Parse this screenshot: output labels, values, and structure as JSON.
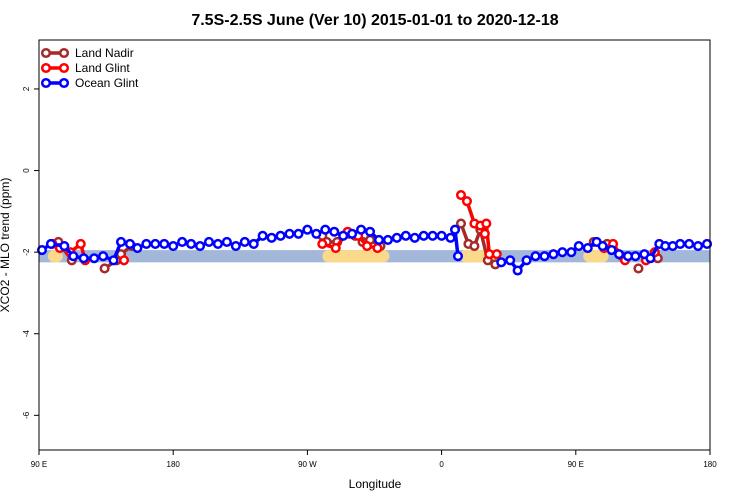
{
  "chart_data": {
    "type": "line",
    "title": "7.5S-2.5S June (Ver 10)   2015-01-01 to 2020-12-18",
    "xlabel": "Longitude",
    "ylabel": "XCO2 - MLO trend (ppm)",
    "x_tick_labels": [
      "90 E",
      "180",
      "90 W",
      "0",
      "90 E",
      "180"
    ],
    "y_ticks": [
      2,
      0,
      -2,
      -4,
      -6
    ],
    "y_tick_labels": [
      "2",
      "0",
      "-2",
      "-4",
      "-6"
    ],
    "x_range": [
      0,
      450
    ],
    "ylim": [
      -6.85,
      3.2
    ],
    "grid": false,
    "legend_position": "top-left",
    "background_bands": [
      {
        "color": "#a3b8d8",
        "y": [
          -2.25,
          -1.95
        ],
        "x": [
          0,
          450
        ]
      },
      {
        "color": "#fbd98a",
        "y": [
          -2.25,
          -1.95
        ],
        "x": [
          6,
          16
        ]
      },
      {
        "color": "#fbd98a",
        "y": [
          -2.25,
          -1.95
        ],
        "x": [
          190,
          235
        ]
      },
      {
        "color": "#fbd98a",
        "y": [
          -2.25,
          -1.95
        ],
        "x": [
          282,
          310
        ]
      },
      {
        "color": "#fbd98a",
        "y": [
          -2.25,
          -1.95
        ],
        "x": [
          365,
          382
        ]
      }
    ],
    "series": [
      {
        "name": "Land Nadir",
        "color": "#a52a2a",
        "points": [
          [
            13,
            -1.75
          ],
          [
            22,
            -2.2
          ],
          [
            44,
            -2.4
          ],
          [
            52,
            -2.2
          ],
          [
            55,
            -2.05
          ],
          [
            62,
            -1.85
          ],
          [
            190,
            -1.6
          ],
          [
            193,
            -1.75
          ],
          [
            200,
            -1.75
          ],
          [
            208,
            -1.55
          ],
          [
            212,
            -1.6
          ],
          [
            217,
            -1.75
          ],
          [
            222,
            -1.7
          ],
          [
            229,
            -1.85
          ],
          [
            283,
            -1.3
          ],
          [
            288,
            -1.8
          ],
          [
            292,
            -1.85
          ],
          [
            296,
            -1.45
          ],
          [
            301,
            -2.2
          ],
          [
            306,
            -2.3
          ],
          [
            372,
            -1.75
          ],
          [
            381,
            -1.8
          ],
          [
            391,
            -2.1
          ],
          [
            402,
            -2.4
          ],
          [
            415,
            -2.15
          ]
        ]
      },
      {
        "name": "Land Glint",
        "color": "#ff0000",
        "points": [
          [
            9,
            -1.8
          ],
          [
            14,
            -1.9
          ],
          [
            21,
            -2.0
          ],
          [
            28,
            -1.8
          ],
          [
            31,
            -2.2
          ],
          [
            57,
            -2.2
          ],
          [
            190,
            -1.8
          ],
          [
            199,
            -1.9
          ],
          [
            207,
            -1.5
          ],
          [
            214,
            -1.6
          ],
          [
            220,
            -1.85
          ],
          [
            227,
            -1.9
          ],
          [
            283,
            -0.6
          ],
          [
            287,
            -0.75
          ],
          [
            292,
            -1.3
          ],
          [
            296,
            -1.35
          ],
          [
            299,
            -1.55
          ],
          [
            300,
            -1.3
          ],
          [
            302,
            -2.05
          ],
          [
            307,
            -2.05
          ],
          [
            379,
            -1.9
          ],
          [
            385,
            -1.8
          ],
          [
            393,
            -2.2
          ],
          [
            407,
            -2.2
          ],
          [
            413,
            -2.0
          ]
        ]
      },
      {
        "name": "Ocean Glint",
        "color": "#0000ff",
        "points": [
          [
            2,
            -1.95
          ],
          [
            8,
            -1.8
          ],
          [
            17,
            -1.85
          ],
          [
            23,
            -2.1
          ],
          [
            30,
            -2.15
          ],
          [
            37,
            -2.15
          ],
          [
            43,
            -2.1
          ],
          [
            50,
            -2.2
          ],
          [
            55,
            -1.75
          ],
          [
            61,
            -1.8
          ],
          [
            66,
            -1.9
          ],
          [
            72,
            -1.8
          ],
          [
            78,
            -1.8
          ],
          [
            84,
            -1.8
          ],
          [
            90,
            -1.85
          ],
          [
            96,
            -1.75
          ],
          [
            102,
            -1.8
          ],
          [
            108,
            -1.85
          ],
          [
            114,
            -1.75
          ],
          [
            120,
            -1.8
          ],
          [
            126,
            -1.75
          ],
          [
            132,
            -1.85
          ],
          [
            138,
            -1.75
          ],
          [
            144,
            -1.8
          ],
          [
            150,
            -1.6
          ],
          [
            156,
            -1.65
          ],
          [
            162,
            -1.6
          ],
          [
            168,
            -1.55
          ],
          [
            174,
            -1.55
          ],
          [
            180,
            -1.45
          ],
          [
            186,
            -1.55
          ],
          [
            192,
            -1.45
          ],
          [
            198,
            -1.5
          ],
          [
            204,
            -1.6
          ],
          [
            210,
            -1.55
          ],
          [
            216,
            -1.45
          ],
          [
            222,
            -1.5
          ],
          [
            228,
            -1.7
          ],
          [
            234,
            -1.7
          ],
          [
            240,
            -1.65
          ],
          [
            246,
            -1.6
          ],
          [
            252,
            -1.65
          ],
          [
            258,
            -1.6
          ],
          [
            264,
            -1.6
          ],
          [
            270,
            -1.6
          ],
          [
            276,
            -1.65
          ],
          [
            279,
            -1.45
          ],
          [
            281,
            -2.1
          ],
          [
            310,
            -2.25
          ],
          [
            316,
            -2.2
          ],
          [
            321,
            -2.45
          ],
          [
            327,
            -2.2
          ],
          [
            333,
            -2.1
          ],
          [
            339,
            -2.1
          ],
          [
            345,
            -2.05
          ],
          [
            351,
            -2.0
          ],
          [
            357,
            -2.0
          ],
          [
            362,
            -1.85
          ],
          [
            368,
            -1.9
          ],
          [
            374,
            -1.75
          ],
          [
            378,
            -1.85
          ],
          [
            384,
            -1.95
          ],
          [
            389,
            -2.05
          ],
          [
            395,
            -2.1
          ],
          [
            400,
            -2.1
          ],
          [
            406,
            -2.05
          ],
          [
            410,
            -2.15
          ],
          [
            416,
            -1.8
          ],
          [
            420,
            -1.85
          ],
          [
            425,
            -1.85
          ],
          [
            430,
            -1.8
          ],
          [
            436,
            -1.8
          ],
          [
            442,
            -1.85
          ],
          [
            448,
            -1.8
          ]
        ]
      }
    ]
  }
}
